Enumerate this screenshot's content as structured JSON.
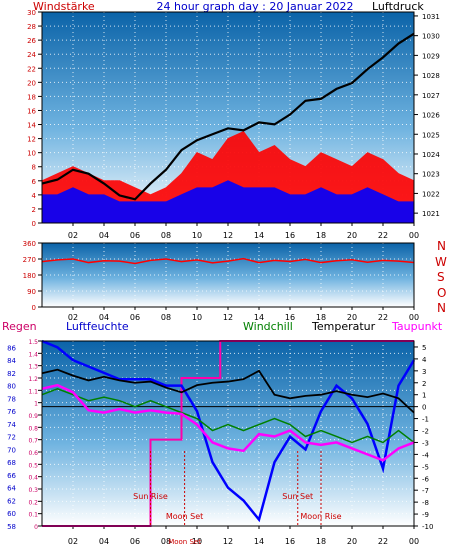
{
  "header": {
    "left_label": "Windstärke",
    "title": "24 hour graph day : 20 Januar 2022",
    "right_label": "Luftdruck"
  },
  "colors": {
    "wind": "#ff0000",
    "gust": "#0000ff",
    "pressure": "#000000",
    "direction": "#ff0000",
    "rain_axis": "#cc0000",
    "humidity": "#0000ff",
    "windchill": "#008000",
    "temperature": "#000000",
    "dewpoint": "#ff00ff",
    "rain": "#ff00aa",
    "events": "#cc0000"
  },
  "bottom_legend": {
    "rain": "Regen",
    "humidity": "Luftfeuchte",
    "windchill": "Windchill",
    "temperature": "Temperatur",
    "dewpoint": "Taupunkt"
  },
  "direction_letters": [
    "N",
    "W",
    "S",
    "O",
    "N"
  ],
  "events": [
    {
      "label": "Sun Rise",
      "hour": 7.0
    },
    {
      "label": "Moon Set",
      "hour": 9.2
    },
    {
      "label": "Sun Set",
      "hour": 16.5
    },
    {
      "label": "Moon Rise",
      "hour": 18.0
    }
  ],
  "bottom_overlap_label": "Moon Set",
  "chart_data": [
    {
      "type": "line",
      "panel": "wind_pressure",
      "x_ticks": [
        "02",
        "04",
        "06",
        "08",
        "10",
        "12",
        "14",
        "16",
        "18",
        "20",
        "22",
        "00"
      ],
      "y_left_ticks": [
        "0",
        "2",
        "4",
        "6",
        "8",
        "10",
        "12",
        "14",
        "16",
        "18",
        "20",
        "22",
        "24",
        "26",
        "28",
        "30"
      ],
      "y_right_ticks": [
        "1021",
        "1022",
        "1023",
        "1024",
        "1025",
        "1026",
        "1027",
        "1028",
        "1029",
        "1030",
        "1031"
      ],
      "ylim_left": [
        0,
        30
      ],
      "ylim_right": [
        1020.5,
        1031.2
      ],
      "series": [
        {
          "name": "Windstärke",
          "axis": "left",
          "x": [
            0,
            1,
            2,
            3,
            4,
            5,
            6,
            7,
            8,
            9,
            10,
            11,
            12,
            13,
            14,
            15,
            16,
            17,
            18,
            19,
            20,
            21,
            22,
            23,
            24
          ],
          "y": [
            6,
            7,
            8,
            7,
            6,
            6,
            5,
            4,
            5,
            7,
            10,
            9,
            12,
            13,
            10,
            11,
            9,
            8,
            10,
            9,
            8,
            10,
            9,
            7,
            6
          ]
        },
        {
          "name": "Böen",
          "axis": "left",
          "x": [
            0,
            1,
            2,
            3,
            4,
            5,
            6,
            7,
            8,
            9,
            10,
            11,
            12,
            13,
            14,
            15,
            16,
            17,
            18,
            19,
            20,
            21,
            22,
            23,
            24
          ],
          "y": [
            4,
            4,
            5,
            4,
            4,
            3,
            3,
            3,
            3,
            4,
            5,
            5,
            6,
            5,
            5,
            5,
            4,
            4,
            5,
            4,
            4,
            5,
            4,
            3,
            3
          ]
        },
        {
          "name": "Luftdruck",
          "axis": "right",
          "x": [
            0,
            1,
            2,
            3,
            4,
            5,
            6,
            7,
            8,
            9,
            10,
            11,
            12,
            13,
            14,
            15,
            16,
            17,
            18,
            19,
            20,
            21,
            22,
            23,
            24
          ],
          "y": [
            1022.5,
            1022.7,
            1023.2,
            1023.0,
            1022.5,
            1021.9,
            1021.7,
            1022.5,
            1023.2,
            1024.2,
            1024.7,
            1025.0,
            1025.3,
            1025.2,
            1025.6,
            1025.5,
            1026.0,
            1026.7,
            1026.8,
            1027.3,
            1027.6,
            1028.3,
            1028.9,
            1029.6,
            1030.1
          ]
        }
      ]
    },
    {
      "type": "line",
      "panel": "wind_direction",
      "x_ticks": [
        "02",
        "04",
        "06",
        "08",
        "10",
        "12",
        "14",
        "16",
        "18",
        "20",
        "22",
        "00"
      ],
      "y_ticks": [
        "0",
        "90",
        "180",
        "270",
        "360"
      ],
      "ylim": [
        0,
        360
      ],
      "series": [
        {
          "name": "Windrichtung",
          "x": [
            0,
            1,
            2,
            3,
            4,
            5,
            6,
            7,
            8,
            9,
            10,
            11,
            12,
            13,
            14,
            15,
            16,
            17,
            18,
            19,
            20,
            21,
            22,
            23,
            24
          ],
          "y": [
            255,
            265,
            270,
            250,
            260,
            258,
            245,
            262,
            270,
            255,
            265,
            248,
            258,
            272,
            250,
            262,
            256,
            268,
            250,
            260,
            266,
            252,
            262,
            258,
            250
          ]
        }
      ]
    },
    {
      "type": "line",
      "panel": "climate",
      "x_ticks": [
        "02",
        "04",
        "06",
        "08",
        "10",
        "12",
        "14",
        "16",
        "18",
        "20",
        "22",
        "00"
      ],
      "y_rain_ticks": [
        "0",
        "0.1",
        "0.2",
        "0.3",
        "0.4",
        "0.5",
        "0.6",
        "0.7",
        "0.8",
        "0.9",
        "1",
        "1.1",
        "1.2",
        "1.3",
        "1.4",
        "1.5"
      ],
      "y_humidity_ticks": [
        "58",
        "60",
        "62",
        "64",
        "66",
        "68",
        "70",
        "72",
        "74",
        "76",
        "78",
        "80",
        "82",
        "84",
        "86"
      ],
      "y_temp_ticks": [
        "-10",
        "-9",
        "-8",
        "-7",
        "-6",
        "-5",
        "-4",
        "-3",
        "-2",
        "-1",
        "0",
        "1",
        "2",
        "3",
        "4",
        "5"
      ],
      "ylim_rain": [
        0,
        1.5
      ],
      "ylim_humidity": [
        58,
        87
      ],
      "ylim_temp": [
        -10,
        5.5
      ],
      "series": [
        {
          "name": "Regen",
          "axis": "rain",
          "x": [
            0,
            7.0,
            7.0,
            9.0,
            9.0,
            11.5,
            11.5,
            24
          ],
          "y": [
            0,
            0,
            0.7,
            0.7,
            1.2,
            1.2,
            1.5,
            1.5
          ]
        },
        {
          "name": "Luftfeuchte",
          "axis": "humidity",
          "x": [
            0,
            1,
            2,
            3,
            4,
            5,
            6,
            7,
            8,
            9,
            10,
            11,
            12,
            13,
            14,
            15,
            16,
            17,
            18,
            19,
            20,
            21,
            22,
            23,
            24
          ],
          "y": [
            87,
            86,
            84,
            83,
            82,
            81,
            81,
            81,
            80,
            80,
            76,
            68,
            64,
            62,
            59,
            68,
            72,
            70,
            76,
            80,
            78,
            74,
            67,
            80,
            84
          ]
        },
        {
          "name": "Windchill",
          "axis": "temp",
          "x": [
            0,
            1,
            2,
            3,
            4,
            5,
            6,
            7,
            8,
            9,
            10,
            11,
            12,
            13,
            14,
            15,
            16,
            17,
            18,
            19,
            20,
            21,
            22,
            23,
            24
          ],
          "y": [
            1.0,
            1.5,
            1.0,
            0.5,
            0.8,
            0.5,
            0.0,
            0.5,
            0.0,
            -0.5,
            -1.0,
            -2.0,
            -1.5,
            -2.0,
            -1.5,
            -1.0,
            -1.5,
            -2.5,
            -2.0,
            -2.5,
            -3.0,
            -2.5,
            -3.0,
            -2.0,
            -3.0
          ]
        },
        {
          "name": "Temperatur",
          "axis": "temp",
          "x": [
            0,
            1,
            2,
            3,
            4,
            5,
            6,
            7,
            8,
            9,
            10,
            11,
            12,
            13,
            14,
            15,
            16,
            17,
            18,
            19,
            20,
            21,
            22,
            23,
            24
          ],
          "y": [
            2.8,
            3.1,
            2.6,
            2.2,
            2.5,
            2.2,
            2.0,
            2.1,
            1.6,
            1.2,
            1.8,
            2.0,
            2.1,
            2.3,
            3.0,
            1.0,
            0.7,
            0.9,
            1.0,
            1.3,
            1.0,
            0.8,
            1.1,
            0.7,
            -0.5
          ]
        },
        {
          "name": "Taupunkt",
          "axis": "temp",
          "x": [
            0,
            1,
            2,
            3,
            4,
            5,
            6,
            7,
            8,
            9,
            10,
            11,
            12,
            13,
            14,
            15,
            16,
            17,
            18,
            19,
            20,
            21,
            22,
            23,
            24
          ],
          "y": [
            1.5,
            1.8,
            1.2,
            -0.3,
            -0.5,
            -0.2,
            -0.5,
            -0.3,
            -0.5,
            -0.6,
            -1.5,
            -3.0,
            -3.5,
            -3.7,
            -2.3,
            -2.5,
            -2.0,
            -3.0,
            -3.2,
            -3.0,
            -3.5,
            -4.0,
            -4.5,
            -3.5,
            -3.0
          ]
        }
      ]
    }
  ]
}
